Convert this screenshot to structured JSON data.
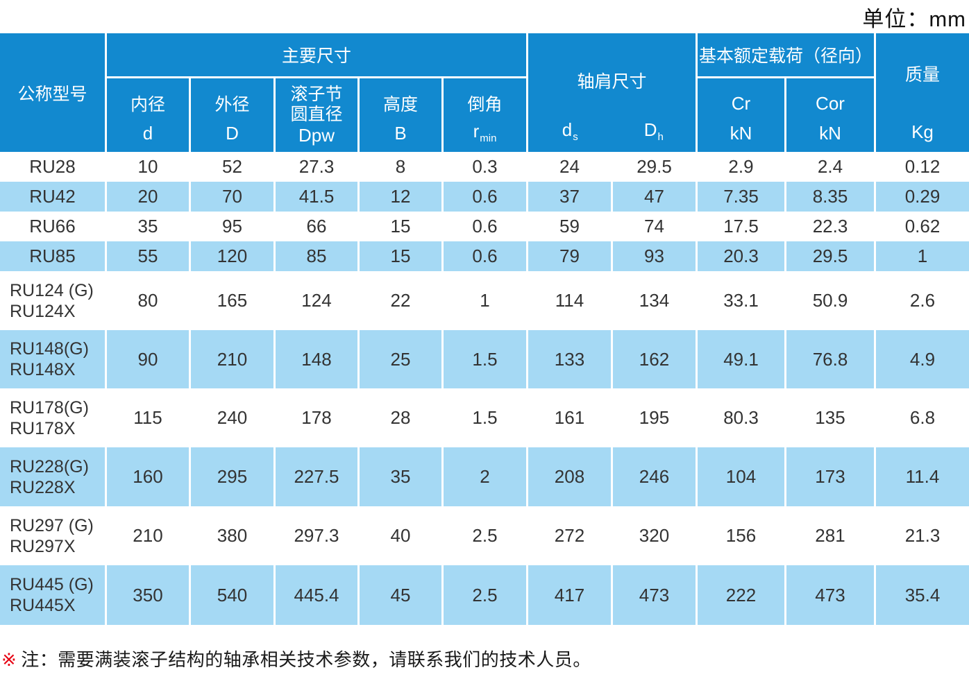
{
  "unit_label": "单位：mm",
  "table": {
    "header": {
      "model": "公称型号",
      "main_dims": "主要尺寸",
      "sub": [
        {
          "name": "内径",
          "symbol": "d"
        },
        {
          "name": "外径",
          "symbol": "D"
        },
        {
          "name_line1": "滚子节",
          "name_line2": "圆直径",
          "symbol": "Dpw"
        },
        {
          "name": "高度",
          "symbol": "B"
        },
        {
          "name": "倒角",
          "symbol": "r",
          "symbol_sub": "min"
        }
      ],
      "shoulder": {
        "title": "轴肩尺寸",
        "cols": [
          {
            "symbol": "d",
            "sub": "s"
          },
          {
            "symbol": "D",
            "sub": "h"
          }
        ]
      },
      "load": {
        "title": "基本额定载荷（径向）",
        "cols": [
          {
            "symbol": "Cr",
            "unit": "kN"
          },
          {
            "symbol": "Cor",
            "unit": "kN"
          }
        ]
      },
      "mass": {
        "title": "质量",
        "unit": "Kg"
      }
    },
    "column_keys": [
      "d",
      "D",
      "Dpw",
      "B",
      "rmin",
      "ds",
      "Dh",
      "Cr",
      "Cor",
      "Kg"
    ],
    "rows": [
      {
        "shade": "white",
        "model_lines": [
          "RU28"
        ],
        "values": [
          "10",
          "52",
          "27.3",
          "8",
          "0.3",
          "24",
          "29.5",
          "2.9",
          "2.4",
          "0.12"
        ]
      },
      {
        "shade": "blue",
        "model_lines": [
          "RU42"
        ],
        "values": [
          "20",
          "70",
          "41.5",
          "12",
          "0.6",
          "37",
          "47",
          "7.35",
          "8.35",
          "0.29"
        ]
      },
      {
        "shade": "white",
        "model_lines": [
          "RU66"
        ],
        "values": [
          "35",
          "95",
          "66",
          "15",
          "0.6",
          "59",
          "74",
          "17.5",
          "22.3",
          "0.62"
        ]
      },
      {
        "shade": "blue",
        "model_lines": [
          "RU85"
        ],
        "values": [
          "55",
          "120",
          "85",
          "15",
          "0.6",
          "79",
          "93",
          "20.3",
          "29.5",
          "1"
        ]
      },
      {
        "shade": "white",
        "model_lines": [
          "RU124 (G)",
          "RU124X"
        ],
        "values": [
          "80",
          "165",
          "124",
          "22",
          "1",
          "114",
          "134",
          "33.1",
          "50.9",
          "2.6"
        ]
      },
      {
        "shade": "blue",
        "model_lines": [
          "RU148(G)",
          "RU148X"
        ],
        "values": [
          "90",
          "210",
          "148",
          "25",
          "1.5",
          "133",
          "162",
          "49.1",
          "76.8",
          "4.9"
        ]
      },
      {
        "shade": "white",
        "model_lines": [
          "RU178(G)",
          "RU178X"
        ],
        "values": [
          "115",
          "240",
          "178",
          "28",
          "1.5",
          "161",
          "195",
          "80.3",
          "135",
          "6.8"
        ]
      },
      {
        "shade": "blue",
        "model_lines": [
          "RU228(G)",
          "RU228X"
        ],
        "values": [
          "160",
          "295",
          "227.5",
          "35",
          "2",
          "208",
          "246",
          "104",
          "173",
          "11.4"
        ]
      },
      {
        "shade": "white",
        "model_lines": [
          "RU297 (G)",
          "RU297X"
        ],
        "values": [
          "210",
          "380",
          "297.3",
          "40",
          "2.5",
          "272",
          "320",
          "156",
          "281",
          "21.3"
        ]
      },
      {
        "shade": "blue",
        "model_lines": [
          "RU445 (G)",
          "RU445X"
        ],
        "values": [
          "350",
          "540",
          "445.4",
          "45",
          "2.5",
          "417",
          "473",
          "222",
          "473",
          "35.4"
        ]
      }
    ]
  },
  "note": {
    "marker": "※",
    "text": "注：需要满装滚子结构的轴承相关技术参数，请联系我们的技术人员。"
  },
  "colors": {
    "header_blue": "#1289cf",
    "row_blue": "#a5d9f4",
    "note_red": "#e60012",
    "data_text": "#333333"
  }
}
